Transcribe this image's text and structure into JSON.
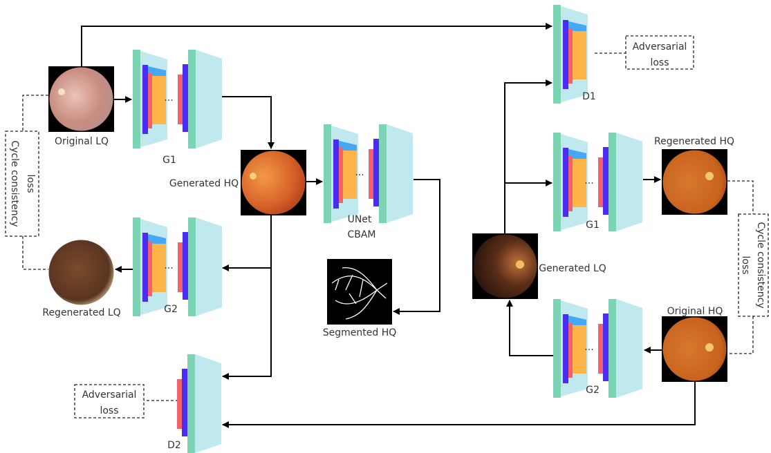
{
  "images": {
    "original_lq": "Original LQ",
    "generated_hq": "Generated HQ",
    "regenerated_lq": "Regenerated LQ",
    "segmented_hq": "Segmented HQ",
    "regenerated_hq": "Regenerated HQ",
    "generated_lq": "Generated LQ",
    "original_hq": "Original HQ"
  },
  "networks": {
    "g1_left": "G1",
    "g2_left": "G2",
    "unet": [
      "UNet",
      "CBAM"
    ],
    "d2": "D2",
    "d1": "D1",
    "g1_right": "G1",
    "g2_right": "G2"
  },
  "ellipsis": "...",
  "losses": {
    "adversarial_right": [
      "Adversarial",
      "loss"
    ],
    "adversarial_left": [
      "Adversarial",
      "loss"
    ],
    "cycle_left": [
      "Cycle consistency",
      "loss"
    ],
    "cycle_right": [
      "Cycle consistency",
      "loss"
    ]
  }
}
